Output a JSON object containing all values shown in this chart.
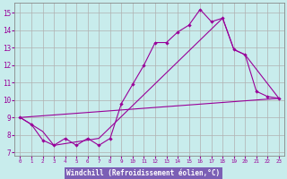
{
  "title": "",
  "xlabel": "Windchill (Refroidissement éolien,°C)",
  "background_color": "#c8ecec",
  "xlabel_bg_color": "#7b5fb5",
  "line_color": "#990099",
  "grid_color": "#b0b0b0",
  "xlim": [
    -0.5,
    23.5
  ],
  "ylim": [
    6.8,
    15.6
  ],
  "yticks": [
    7,
    8,
    9,
    10,
    11,
    12,
    13,
    14,
    15
  ],
  "xticks": [
    0,
    1,
    2,
    3,
    4,
    5,
    6,
    7,
    8,
    9,
    10,
    11,
    12,
    13,
    14,
    15,
    16,
    17,
    18,
    19,
    20,
    21,
    22,
    23
  ],
  "main_x": [
    0,
    1,
    2,
    3,
    4,
    5,
    6,
    7,
    8,
    9,
    10,
    11,
    12,
    13,
    14,
    15,
    16,
    17,
    18,
    19,
    20,
    21,
    22,
    23
  ],
  "main_y": [
    9.0,
    8.6,
    7.7,
    7.4,
    7.8,
    7.4,
    7.8,
    7.4,
    7.8,
    9.8,
    10.9,
    12.0,
    13.3,
    13.3,
    13.9,
    14.3,
    15.2,
    14.5,
    14.7,
    12.9,
    12.6,
    10.5,
    10.2,
    10.1
  ],
  "line2_x": [
    0,
    23
  ],
  "line2_y": [
    9.0,
    10.1
  ],
  "line3_x": [
    0,
    2,
    3,
    7,
    18,
    19,
    20,
    23
  ],
  "line3_y": [
    9.0,
    8.2,
    7.4,
    7.8,
    14.7,
    12.9,
    12.6,
    10.1
  ]
}
